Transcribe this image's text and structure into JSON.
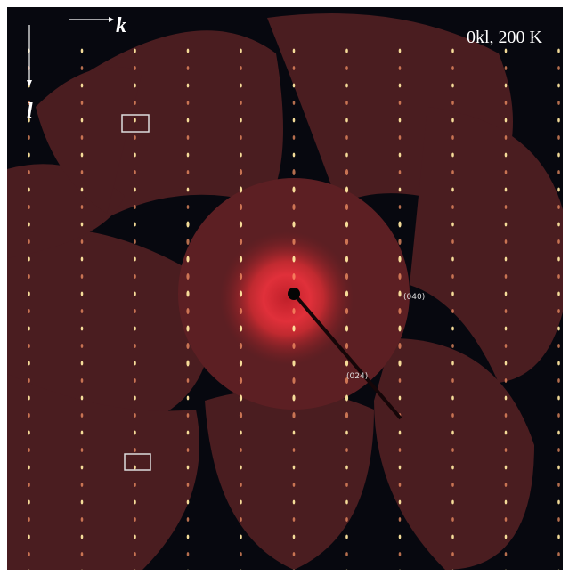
{
  "axes": {
    "horizontal": "k",
    "vertical": "l"
  },
  "condition": "0kl, 200 K",
  "reflections": [
    "(040)",
    "(024)"
  ]
}
